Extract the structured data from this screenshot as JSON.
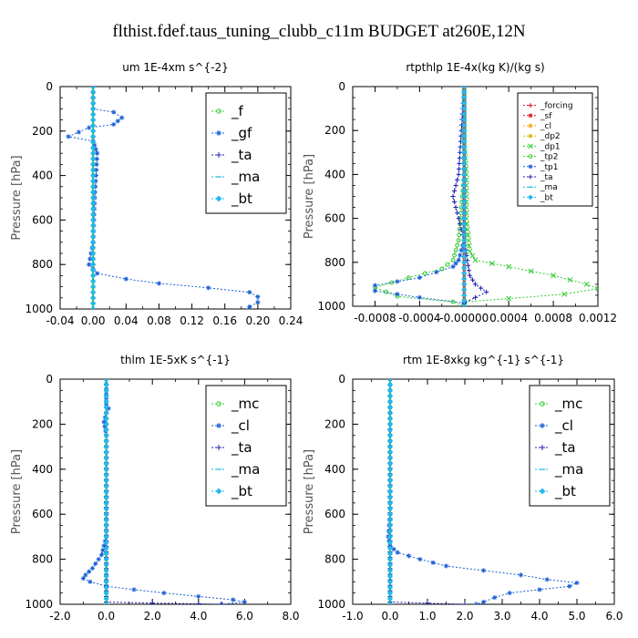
{
  "title": "flthist.fdef.taus_tuning_clubb_c11m  BUDGET at260E,12N",
  "colors": {
    "green": "#33cc33",
    "blue": "#1a5fd6",
    "dblue": "#1f1fb0",
    "cyan": "#1ab7e0",
    "bt": "#22b8f0",
    "red": "#e01010",
    "orange": "#f5a623",
    "yellow": "#d4b800",
    "teal": "#5b8fa8"
  },
  "chart_data": [
    {
      "type": "line",
      "title": "um   1E-4xm s^{-2}",
      "ylabel": "Pressure [hPa]",
      "xlim": [
        -0.04,
        0.24
      ],
      "ylim": [
        1000,
        0
      ],
      "xticks": [
        -0.04,
        0.0,
        0.04,
        0.08,
        0.12,
        0.16,
        0.2,
        0.24
      ],
      "xtick_labels": [
        "-0.04",
        "0.00",
        "0.04",
        "0.08",
        "0.12",
        "0.16",
        "0.20",
        "0.24"
      ],
      "yticks": [
        0,
        200,
        400,
        600,
        800,
        1000
      ],
      "legend_pos": "upper-right",
      "series": [
        {
          "name": "_f",
          "color": "green",
          "marker": "circle",
          "width": 2,
          "points": [
            [
              0,
              0
            ],
            [
              0,
              1000
            ]
          ]
        },
        {
          "name": "_gf",
          "color": "blue",
          "marker": "star",
          "points": [
            [
              0,
              0
            ],
            [
              0,
              100
            ],
            [
              0.025,
              115
            ],
            [
              0.035,
              140
            ],
            [
              0.025,
              170
            ],
            [
              -0.005,
              185
            ],
            [
              -0.03,
              225
            ],
            [
              0,
              245
            ],
            [
              0.005,
              300
            ],
            [
              0.002,
              500
            ],
            [
              0,
              700
            ],
            [
              -0.005,
              800
            ],
            [
              0.005,
              840
            ],
            [
              0.04,
              865
            ],
            [
              0.08,
              885
            ],
            [
              0.14,
              905
            ],
            [
              0.19,
              925
            ],
            [
              0.2,
              945
            ],
            [
              0.2,
              970
            ],
            [
              0.19,
              990
            ],
            [
              0.19,
              1000
            ]
          ]
        },
        {
          "name": "_ta",
          "color": "dblue",
          "marker": "plus",
          "points": [
            [
              0,
              0
            ],
            [
              0,
              1000
            ]
          ]
        },
        {
          "name": "_ma",
          "color": "cyan",
          "marker": "dash",
          "points": [
            [
              0,
              0
            ],
            [
              0,
              1000
            ]
          ]
        },
        {
          "name": "_bt",
          "color": "bt",
          "marker": "diamond",
          "points": [
            [
              0,
              0
            ],
            [
              0,
              1000
            ]
          ]
        }
      ]
    },
    {
      "type": "line",
      "title": "rtpthlp   1E-4x(kg K)/(kg s)",
      "ylabel": "Pressure [hPa]",
      "xlim": [
        -0.001,
        0.0012
      ],
      "ylim": [
        1000,
        0
      ],
      "xticks": [
        -0.0008,
        -0.0004,
        0.0,
        0.0004,
        0.0008,
        0.0012
      ],
      "xtick_labels": [
        "-0.0008",
        "-0.0004",
        "-0.00000",
        "0.0004",
        "0.0008",
        "0.0012"
      ],
      "yticks": [
        0,
        200,
        400,
        600,
        800,
        1000
      ],
      "legend_pos": "upper-right",
      "legend_small": true,
      "series": [
        {
          "name": "_forcing",
          "color": "red",
          "marker": "plus",
          "points": [
            [
              0,
              0
            ],
            [
              0,
              1000
            ]
          ]
        },
        {
          "name": "_sf",
          "color": "red",
          "marker": "star",
          "width": 3,
          "points": [
            [
              0,
              0
            ],
            [
              0,
              1000
            ]
          ]
        },
        {
          "name": "_cl",
          "color": "orange",
          "marker": "star",
          "points": [
            [
              0,
              0
            ],
            [
              0,
              1000
            ]
          ]
        },
        {
          "name": "_dp2",
          "color": "yellow",
          "marker": "star",
          "points": [
            [
              0,
              0
            ],
            [
              0,
              1000
            ]
          ]
        },
        {
          "name": "_dp1",
          "color": "green",
          "marker": "cross",
          "points": [
            [
              0,
              0
            ],
            [
              0,
              250
            ],
            [
              2e-05,
              400
            ],
            [
              2e-05,
              600
            ],
            [
              5e-05,
              750
            ],
            [
              0.0001,
              790
            ],
            [
              0.0004,
              820
            ],
            [
              0.0008,
              860
            ],
            [
              0.0011,
              900
            ],
            [
              0.0012,
              920
            ],
            [
              0.0009,
              945
            ],
            [
              0.0004,
              965
            ],
            [
              0,
              980
            ],
            [
              0,
              1000
            ]
          ]
        },
        {
          "name": "_tp2",
          "color": "green",
          "marker": "circle",
          "points": [
            [
              0,
              0
            ],
            [
              0,
              400
            ],
            [
              -5e-05,
              700
            ],
            [
              -0.0001,
              790
            ],
            [
              -0.0002,
              830
            ],
            [
              -0.0005,
              870
            ],
            [
              -0.0008,
              915
            ],
            [
              -0.0006,
              955
            ],
            [
              -0.0001,
              980
            ],
            [
              0,
              1000
            ]
          ]
        },
        {
          "name": "_tp1",
          "color": "blue",
          "marker": "star",
          "points": [
            [
              0,
              0
            ],
            [
              0,
              700
            ],
            [
              -5e-05,
              790
            ],
            [
              -0.0001,
              820
            ],
            [
              -0.0004,
              870
            ],
            [
              -0.0008,
              905
            ],
            [
              -0.0008,
              930
            ],
            [
              -0.0004,
              960
            ],
            [
              0,
              985
            ],
            [
              0,
              1000
            ]
          ]
        },
        {
          "name": "_ta",
          "color": "dblue",
          "marker": "plus",
          "points": [
            [
              0,
              0
            ],
            [
              -5e-05,
              400
            ],
            [
              -0.0001,
              500
            ],
            [
              0,
              700
            ],
            [
              5e-05,
              860
            ],
            [
              0.0001,
              900
            ],
            [
              0.0002,
              935
            ],
            [
              0.0001,
              960
            ],
            [
              0,
              985
            ],
            [
              0,
              1000
            ]
          ]
        },
        {
          "name": "_ma",
          "color": "cyan",
          "marker": "dash",
          "points": [
            [
              0,
              0
            ],
            [
              0,
              1000
            ]
          ]
        },
        {
          "name": "_bt",
          "color": "bt",
          "marker": "diamond",
          "points": [
            [
              0,
              0
            ],
            [
              0,
              1000
            ]
          ]
        }
      ]
    },
    {
      "type": "line",
      "title": "thlm   1E-5xK s^{-1}",
      "ylabel": "Pressure [hPa]",
      "xlim": [
        -2.0,
        8.0
      ],
      "ylim": [
        1000,
        0
      ],
      "xticks": [
        -2,
        0,
        2,
        4,
        6,
        8
      ],
      "xtick_labels": [
        "-2.0",
        "0.0",
        "2.0",
        "4.0",
        "6.0",
        "8.0"
      ],
      "yticks": [
        0,
        200,
        400,
        600,
        800,
        1000
      ],
      "legend_pos": "upper-right",
      "series": [
        {
          "name": "_mc",
          "color": "green",
          "marker": "circle",
          "width": 2,
          "points": [
            [
              0,
              0
            ],
            [
              0,
              1000
            ]
          ]
        },
        {
          "name": "_cl",
          "color": "blue",
          "marker": "star",
          "points": [
            [
              0,
              0
            ],
            [
              0,
              110
            ],
            [
              0.1,
              130
            ],
            [
              0,
              150
            ],
            [
              -0.1,
              190
            ],
            [
              0,
              250
            ],
            [
              0,
              700
            ],
            [
              -0.2,
              780
            ],
            [
              -0.6,
              840
            ],
            [
              -0.9,
              870
            ],
            [
              -1,
              885
            ],
            [
              -0.7,
              900
            ],
            [
              0,
              920
            ],
            [
              1.2,
              935
            ],
            [
              2.5,
              950
            ],
            [
              4,
              965
            ],
            [
              5.5,
              980
            ],
            [
              6,
              990
            ],
            [
              5,
              1000
            ]
          ]
        },
        {
          "name": "_ta",
          "color": "dblue",
          "marker": "plus",
          "points": [
            [
              0,
              0
            ],
            [
              0,
              990
            ],
            [
              2,
              995
            ],
            [
              4,
              998
            ],
            [
              5,
              1000
            ]
          ]
        },
        {
          "name": "_ma",
          "color": "cyan",
          "marker": "dash",
          "points": [
            [
              0,
              0
            ],
            [
              0,
              1000
            ]
          ]
        },
        {
          "name": "_bt",
          "color": "bt",
          "marker": "diamond",
          "points": [
            [
              0,
              0
            ],
            [
              0,
              1000
            ]
          ]
        }
      ]
    },
    {
      "type": "line",
      "title": "rtm   1E-8xkg kg^{-1} s^{-1}",
      "ylabel": "Pressure [hPa]",
      "xlim": [
        -1.0,
        6.0
      ],
      "ylim": [
        1000,
        0
      ],
      "xticks": [
        -1,
        0,
        1,
        2,
        3,
        4,
        5,
        6
      ],
      "xtick_labels": [
        "-1.0",
        "0.0",
        "1.0",
        "2.0",
        "3.0",
        "4.0",
        "5.0",
        "6.0"
      ],
      "yticks": [
        0,
        200,
        400,
        600,
        800,
        1000
      ],
      "legend_pos": "upper-right",
      "series": [
        {
          "name": "_mc",
          "color": "green",
          "marker": "circle",
          "width": 2,
          "points": [
            [
              0,
              0
            ],
            [
              0,
              1000
            ]
          ]
        },
        {
          "name": "_cl",
          "color": "blue",
          "marker": "star",
          "points": [
            [
              0,
              0
            ],
            [
              0,
              600
            ],
            [
              -0.05,
              700
            ],
            [
              0,
              740
            ],
            [
              0.2,
              770
            ],
            [
              0.8,
              800
            ],
            [
              1.5,
              830
            ],
            [
              2.5,
              850
            ],
            [
              3.5,
              870
            ],
            [
              4.2,
              890
            ],
            [
              5,
              905
            ],
            [
              4.8,
              920
            ],
            [
              4,
              935
            ],
            [
              3.2,
              950
            ],
            [
              2.8,
              970
            ],
            [
              2.5,
              990
            ],
            [
              2.3,
              1000
            ]
          ]
        },
        {
          "name": "_ta",
          "color": "dblue",
          "marker": "plus",
          "points": [
            [
              0,
              0
            ],
            [
              0,
              990
            ],
            [
              1,
              995
            ],
            [
              2,
              1000
            ]
          ]
        },
        {
          "name": "_ma",
          "color": "cyan",
          "marker": "dash",
          "points": [
            [
              0,
              0
            ],
            [
              0,
              1000
            ]
          ]
        },
        {
          "name": "_bt",
          "color": "bt",
          "marker": "diamond",
          "points": [
            [
              0,
              0
            ],
            [
              0,
              1000
            ]
          ]
        }
      ]
    }
  ]
}
